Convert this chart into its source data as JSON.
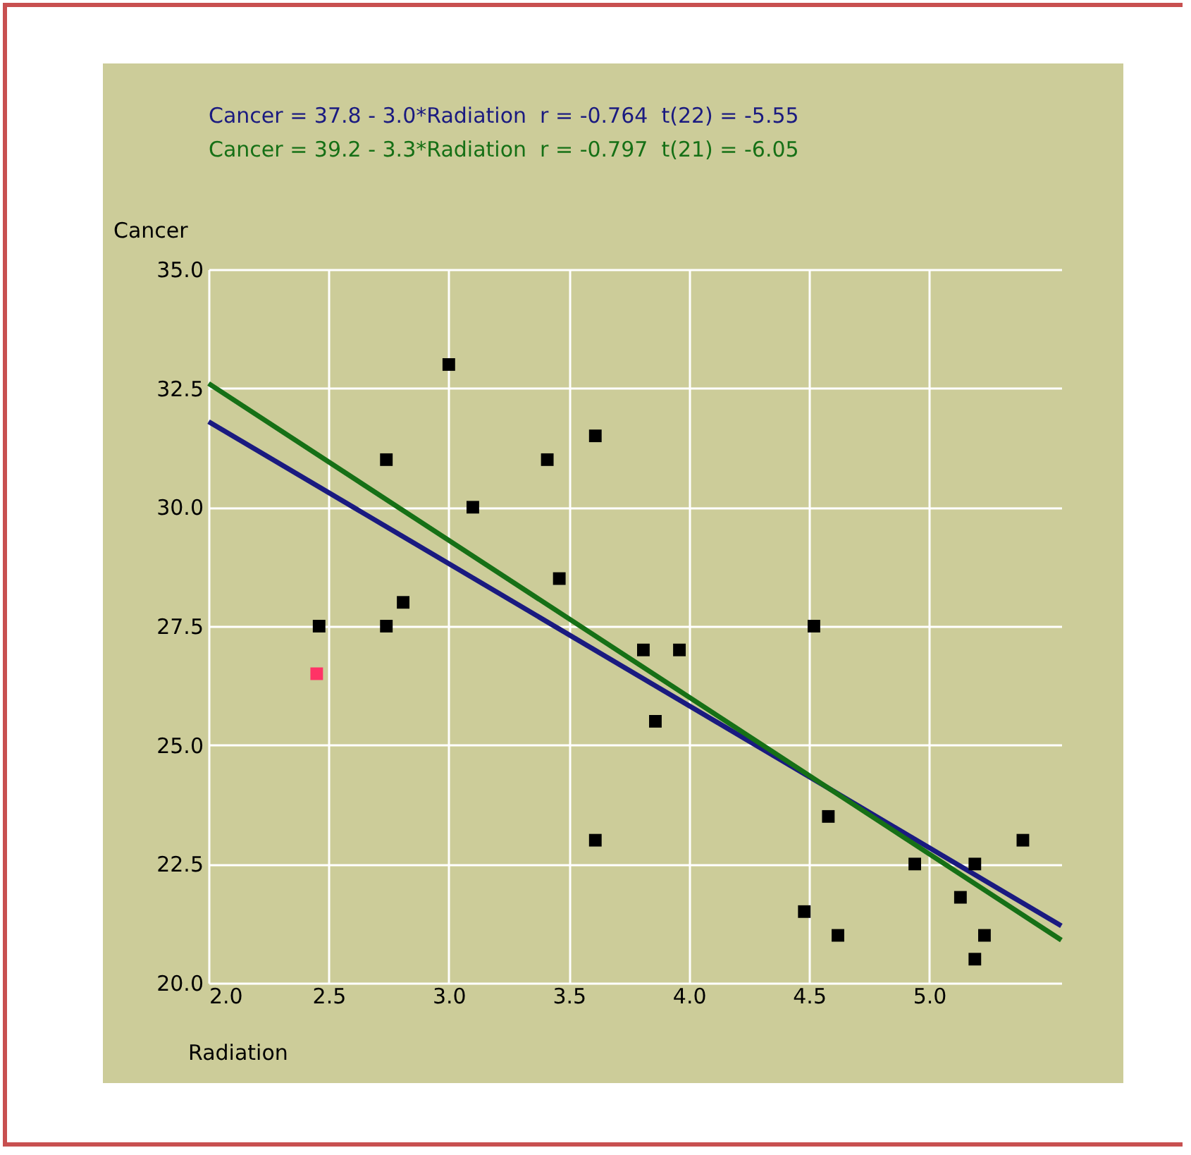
{
  "chart_data": {
    "type": "scatter",
    "xlabel": "Radiation",
    "ylabel": "Cancer",
    "xlim": [
      2.0,
      5.55
    ],
    "ylim": [
      20.0,
      35.0
    ],
    "xticks": [
      {
        "value": 2,
        "label": "2.0"
      },
      {
        "value": 2.5,
        "label": "2.5"
      },
      {
        "value": 3,
        "label": "3.0"
      },
      {
        "value": 3.5,
        "label": "3.5"
      },
      {
        "value": 4,
        "label": "4.0"
      },
      {
        "value": 4.5,
        "label": "4.5"
      },
      {
        "value": 5,
        "label": "5.0"
      }
    ],
    "yticks": [
      {
        "value": 20,
        "label": "20.0"
      },
      {
        "value": 22.5,
        "label": "22.5"
      },
      {
        "value": 25,
        "label": "25.0"
      },
      {
        "value": 27.5,
        "label": "27.5"
      },
      {
        "value": 30,
        "label": "30.0"
      },
      {
        "value": 32.5,
        "label": "32.5"
      },
      {
        "value": 35,
        "label": "35.0"
      }
    ],
    "grid": true,
    "marker": "square",
    "legend": "top",
    "series": [
      {
        "color": "#000000",
        "x": [
          2.46,
          2.74,
          2.74,
          2.81,
          3.0,
          3.1,
          3.41,
          3.46,
          3.61,
          3.61,
          3.81,
          3.86,
          3.96,
          4.52,
          4.48,
          4.58,
          4.62,
          4.94,
          5.13,
          5.19,
          5.19,
          5.23,
          5.39
        ],
        "values": [
          27.5,
          31.0,
          27.5,
          28.0,
          33.0,
          30.0,
          31.0,
          28.5,
          31.5,
          23.0,
          27.0,
          25.5,
          27.0,
          27.5,
          21.5,
          23.5,
          21.0,
          22.5,
          21.8,
          22.5,
          20.5,
          21.0,
          23.0
        ]
      },
      {
        "color": "#ff3366",
        "x": [
          2.45
        ],
        "values": [
          26.5
        ]
      },
      {
        "type": "line",
        "marker": "none",
        "name": "Cancer = 37.8 - 3.0*Radiation  r = -0.764  t(22) = -5.55",
        "color": "#1a1a80",
        "x": [
          2.0,
          5.55
        ],
        "values": [
          31.8,
          21.2
        ]
      },
      {
        "type": "line",
        "marker": "none",
        "name": "Cancer = 39.2 - 3.3*Radiation  r = -0.797  t(21) = -6.05",
        "color": "#167016",
        "x": [
          2.0,
          5.55
        ],
        "values": [
          32.6,
          20.9
        ]
      }
    ]
  }
}
